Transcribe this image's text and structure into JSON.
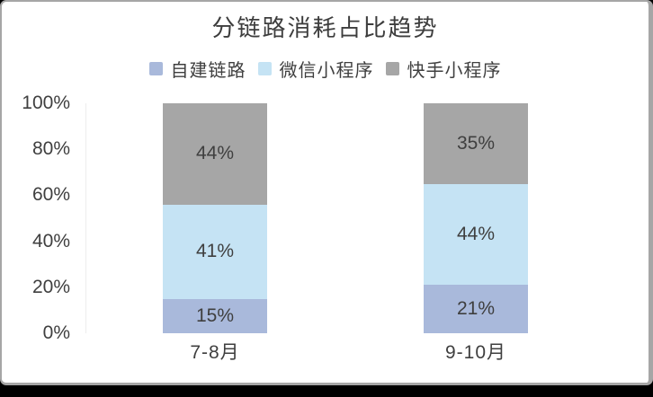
{
  "chart_data": {
    "type": "bar",
    "variant": "stacked-percent",
    "title": "分链路消耗占比趋势",
    "categories": [
      "7-8月",
      "9-10月"
    ],
    "series": [
      {
        "name": "自建链路",
        "color": "#a9b9db",
        "values": [
          15,
          21
        ]
      },
      {
        "name": "微信小程序",
        "color": "#c5e3f4",
        "values": [
          41,
          44
        ]
      },
      {
        "name": "快手小程序",
        "color": "#a6a6a6",
        "values": [
          44,
          35
        ]
      }
    ],
    "data_labels": {
      "7-8月": [
        "15%",
        "41%",
        "44%"
      ],
      "9-10月": [
        "21%",
        "44%",
        "35%"
      ]
    },
    "y_ticks": [
      "0%",
      "20%",
      "40%",
      "60%",
      "80%",
      "100%"
    ],
    "ylim": [
      0,
      100
    ],
    "value_suffix": "%",
    "legend_position": "top",
    "grid": false
  },
  "colors": {
    "card_background": "#ffffff",
    "card_border": "#a6a6a6",
    "letterbox": "#000000",
    "title_text": "#3d3d3d",
    "label_text": "#3f3f3f",
    "axis_line": "#ededed"
  }
}
